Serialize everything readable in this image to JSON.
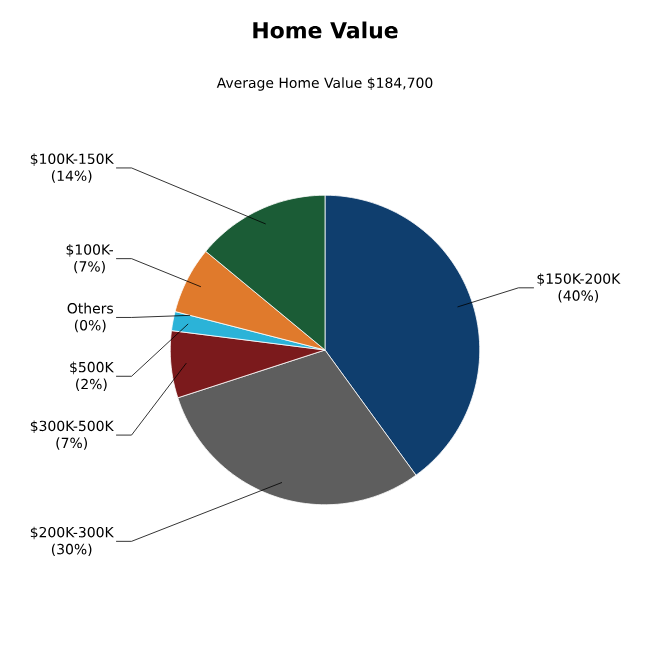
{
  "chart_data": {
    "type": "pie",
    "title": "Home Value",
    "subtitle": "Average Home Value  $184,700",
    "categories": [
      "$150K-200K",
      "$200K-300K",
      "$300K-500K",
      "$500K",
      "Others",
      "$100K-",
      "$100K-150K"
    ],
    "values": [
      40,
      30,
      7,
      2,
      0,
      7,
      14
    ],
    "value_labels": [
      "(40%)",
      "(30%)",
      "(7%)",
      "(2%)",
      "(0%)",
      "(7%)",
      "(14%)"
    ],
    "colors": [
      "#0f3e6e",
      "#5e5e5e",
      "#7b1a1c",
      "#2bb3d8",
      "#9a9a9a",
      "#e07a2c",
      "#1b5c36"
    ]
  }
}
